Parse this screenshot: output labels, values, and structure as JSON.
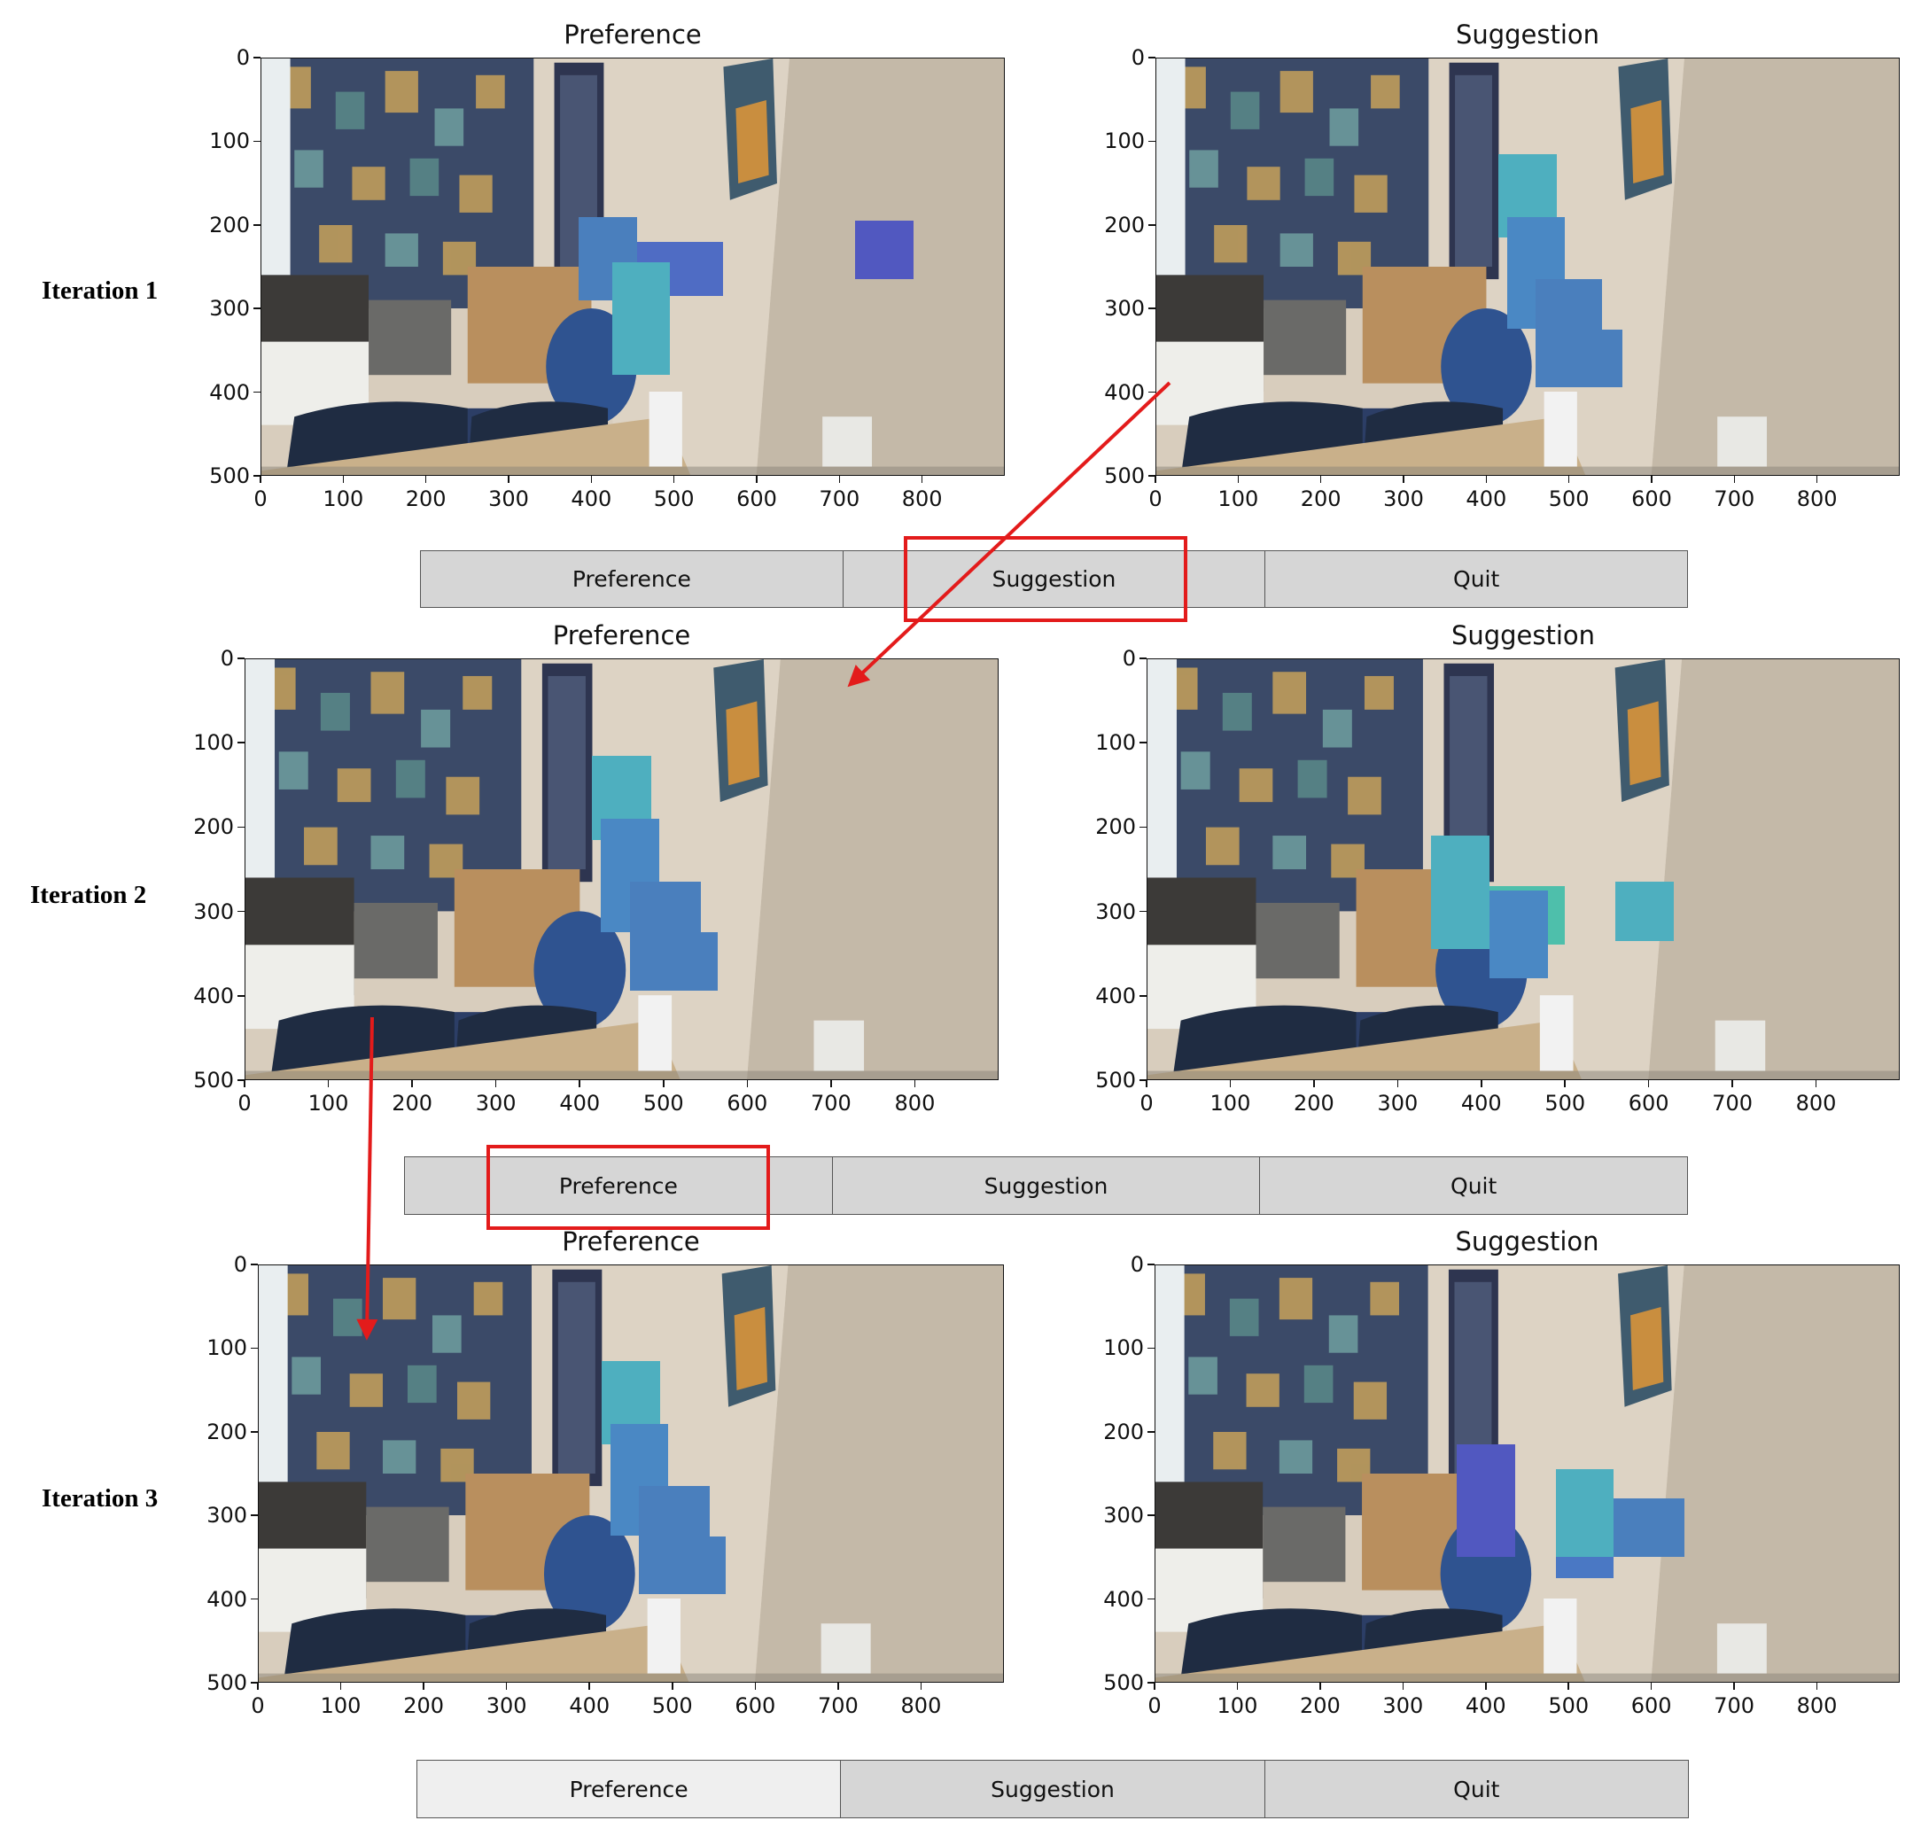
{
  "iterations": [
    {
      "label": "Iteration 1",
      "panels": [
        {
          "title": "Preference",
          "rects": [
            {
              "x0": 385,
              "x1": 455,
              "y0": 190,
              "y1": 290,
              "color": "#4a7fbd"
            },
            {
              "x0": 455,
              "x1": 560,
              "y0": 220,
              "y1": 285,
              "color": "#4f6cc4"
            },
            {
              "x0": 425,
              "x1": 495,
              "y0": 245,
              "y1": 380,
              "color": "#4eafbf"
            },
            {
              "x0": 720,
              "x1": 790,
              "y0": 195,
              "y1": 265,
              "color": "#5158c0"
            }
          ]
        },
        {
          "title": "Suggestion",
          "rects": [
            {
              "x0": 415,
              "x1": 485,
              "y0": 115,
              "y1": 215,
              "color": "#4eafbf"
            },
            {
              "x0": 425,
              "x1": 495,
              "y0": 190,
              "y1": 325,
              "color": "#4a88c4"
            },
            {
              "x0": 460,
              "x1": 540,
              "y0": 265,
              "y1": 345,
              "color": "#4a7fbd"
            },
            {
              "x0": 460,
              "x1": 565,
              "y0": 325,
              "y1": 395,
              "color": "#4a7fbd"
            }
          ]
        }
      ],
      "buttons": [
        "Preference",
        "Suggestion",
        "Quit"
      ],
      "active_button": -1
    },
    {
      "label": "Iteration 2",
      "panels": [
        {
          "title": "Preference",
          "rects": [
            {
              "x0": 415,
              "x1": 485,
              "y0": 115,
              "y1": 215,
              "color": "#4eafbf"
            },
            {
              "x0": 425,
              "x1": 495,
              "y0": 190,
              "y1": 325,
              "color": "#4a88c4"
            },
            {
              "x0": 460,
              "x1": 545,
              "y0": 265,
              "y1": 345,
              "color": "#4a7fbd"
            },
            {
              "x0": 460,
              "x1": 565,
              "y0": 325,
              "y1": 395,
              "color": "#4a7fbd"
            }
          ]
        },
        {
          "title": "Suggestion",
          "rects": [
            {
              "x0": 340,
              "x1": 410,
              "y0": 210,
              "y1": 345,
              "color": "#4eafbf"
            },
            {
              "x0": 410,
              "x1": 500,
              "y0": 270,
              "y1": 340,
              "color": "#4ebfab"
            },
            {
              "x0": 410,
              "x1": 480,
              "y0": 275,
              "y1": 380,
              "color": "#4a88c4"
            },
            {
              "x0": 560,
              "x1": 630,
              "y0": 265,
              "y1": 335,
              "color": "#4eafbf"
            }
          ]
        }
      ],
      "buttons": [
        "Preference",
        "Suggestion",
        "Quit"
      ],
      "active_button": -1
    },
    {
      "label": "Iteration 3",
      "panels": [
        {
          "title": "Preference",
          "rects": [
            {
              "x0": 415,
              "x1": 485,
              "y0": 115,
              "y1": 215,
              "color": "#4eafbf"
            },
            {
              "x0": 425,
              "x1": 495,
              "y0": 190,
              "y1": 325,
              "color": "#4a88c4"
            },
            {
              "x0": 460,
              "x1": 545,
              "y0": 265,
              "y1": 345,
              "color": "#4a7fbd"
            },
            {
              "x0": 460,
              "x1": 565,
              "y0": 325,
              "y1": 395,
              "color": "#4a7fbd"
            }
          ]
        },
        {
          "title": "Suggestion",
          "rects": [
            {
              "x0": 365,
              "x1": 435,
              "y0": 215,
              "y1": 350,
              "color": "#5158c0"
            },
            {
              "x0": 485,
              "x1": 555,
              "y0": 245,
              "y1": 350,
              "color": "#4eafbf"
            },
            {
              "x0": 555,
              "x1": 640,
              "y0": 280,
              "y1": 350,
              "color": "#4a7fbd"
            },
            {
              "x0": 485,
              "x1": 555,
              "y0": 350,
              "y1": 375,
              "color": "#4a78c4"
            }
          ]
        }
      ],
      "buttons": [
        "Preference",
        "Suggestion",
        "Quit"
      ],
      "active_button": 0
    }
  ],
  "axis": {
    "xlim": [
      0,
      900
    ],
    "ylim": [
      0,
      500
    ],
    "xticks": [
      "0",
      "100",
      "200",
      "300",
      "400",
      "500",
      "600",
      "700",
      "800"
    ],
    "yticks": [
      "0",
      "100",
      "200",
      "300",
      "400",
      "500"
    ]
  },
  "annotations": {
    "color": "#e31b1b",
    "highlighted_buttons": [
      {
        "iteration": 0,
        "button": 1
      },
      {
        "iteration": 1,
        "button": 0
      }
    ]
  }
}
